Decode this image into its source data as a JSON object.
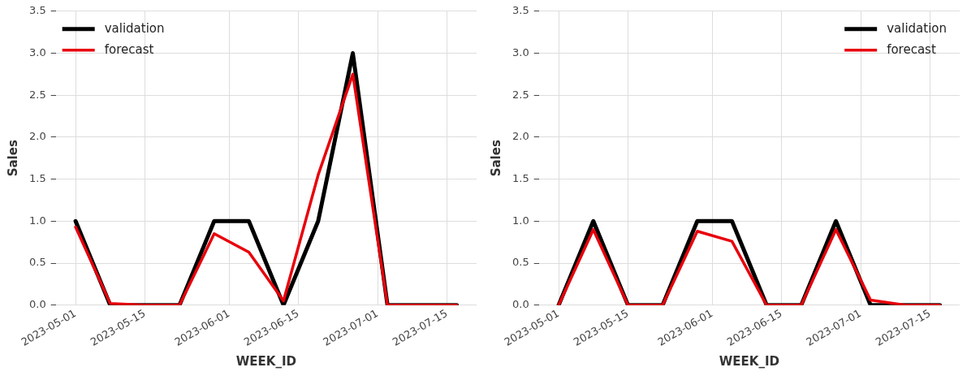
{
  "chart_data": [
    {
      "type": "line",
      "xlabel": "WEEK_ID",
      "ylabel": "Sales",
      "x": [
        "2023-05-01",
        "2023-05-08",
        "2023-05-15",
        "2023-05-22",
        "2023-05-29",
        "2023-06-05",
        "2023-06-12",
        "2023-06-19",
        "2023-06-26",
        "2023-07-03",
        "2023-07-10",
        "2023-07-17"
      ],
      "series": [
        {
          "name": "validation",
          "color": "#000000",
          "values": [
            1,
            0,
            0,
            0,
            1,
            1,
            0,
            1,
            3,
            0,
            0,
            0
          ]
        },
        {
          "name": "forecast",
          "color": "#e8000b",
          "values": [
            0.93,
            0.02,
            0,
            0,
            0.85,
            0.63,
            0.05,
            1.55,
            2.75,
            0,
            0,
            0
          ]
        }
      ],
      "xlim": [
        "2023-04-27",
        "2023-07-21"
      ],
      "xticks": [
        "2023-05-01",
        "2023-05-15",
        "2023-06-01",
        "2023-06-15",
        "2023-07-01",
        "2023-07-15"
      ],
      "ylim": [
        0,
        3.5
      ],
      "yticks": [
        {
          "value": 0,
          "label": "0.0"
        },
        {
          "value": 0.5,
          "label": "0.5"
        },
        {
          "value": 1,
          "label": "1.0"
        },
        {
          "value": 1.5,
          "label": "1.5"
        },
        {
          "value": 2,
          "label": "2.0"
        },
        {
          "value": 2.5,
          "label": "2.5"
        },
        {
          "value": 3,
          "label": "3.0"
        },
        {
          "value": 3.5,
          "label": "3.5"
        }
      ],
      "grid": true,
      "legend": "top left",
      "marker": "none",
      "line_style": "solid"
    },
    {
      "type": "line",
      "xlabel": "WEEK_ID",
      "ylabel": "Sales",
      "x": [
        "2023-05-01",
        "2023-05-08",
        "2023-05-15",
        "2023-05-22",
        "2023-05-29",
        "2023-06-05",
        "2023-06-12",
        "2023-06-19",
        "2023-06-26",
        "2023-07-03",
        "2023-07-10",
        "2023-07-17"
      ],
      "series": [
        {
          "name": "validation",
          "color": "#000000",
          "values": [
            0,
            1,
            0,
            0,
            1,
            1,
            0,
            0,
            1,
            0,
            0,
            0
          ]
        },
        {
          "name": "forecast",
          "color": "#e8000b",
          "values": [
            0,
            0.9,
            0,
            0,
            0.88,
            0.76,
            0,
            0,
            0.9,
            0.06,
            0,
            0
          ]
        }
      ],
      "xlim": [
        "2023-04-27",
        "2023-07-21"
      ],
      "xticks": [
        "2023-05-01",
        "2023-05-15",
        "2023-06-01",
        "2023-06-15",
        "2023-07-01",
        "2023-07-15"
      ],
      "ylim": [
        0,
        3.5
      ],
      "yticks": [
        {
          "value": 0,
          "label": "0.0"
        },
        {
          "value": 0.5,
          "label": "0.5"
        },
        {
          "value": 1,
          "label": "1.0"
        },
        {
          "value": 1.5,
          "label": "1.5"
        },
        {
          "value": 2,
          "label": "2.0"
        },
        {
          "value": 2.5,
          "label": "2.5"
        },
        {
          "value": 3,
          "label": "3.0"
        },
        {
          "value": 3.5,
          "label": "3.5"
        }
      ],
      "grid": true,
      "legend": "top right",
      "marker": "none",
      "line_style": "solid"
    }
  ]
}
